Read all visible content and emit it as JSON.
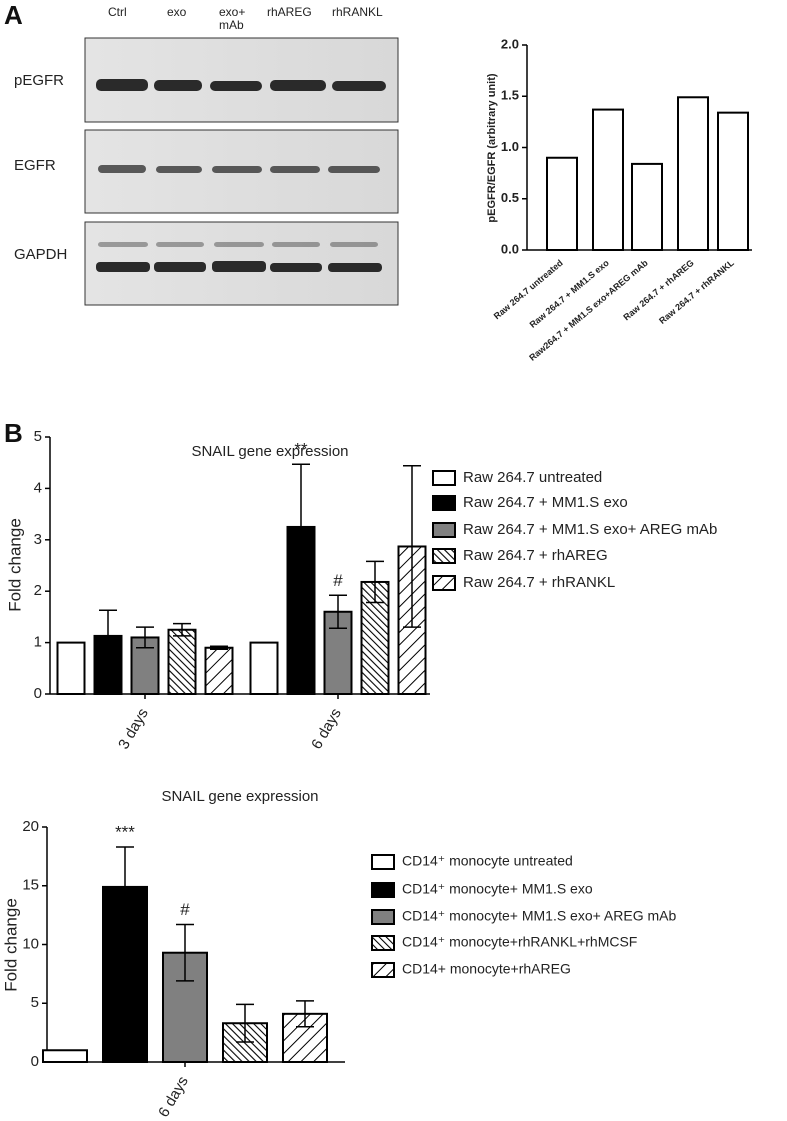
{
  "panel_labels": [
    "A",
    "B"
  ],
  "blot": {
    "lanes": [
      "Ctrl",
      "exo",
      "exo+ mAb",
      "rhAREG",
      "rhRANKL"
    ],
    "rows": [
      "pEGFR",
      "EGFR",
      "GAPDH"
    ]
  },
  "chart_data": [
    {
      "type": "bar",
      "ylabel": "pEGFR/EGFR (arbitrary unit)",
      "categories": [
        "Raw 264.7 untreated",
        "Raw 264.7 + MM1.S exo",
        "Raw264.7 + MM1.S exo+AREG mAb",
        "Raw 264.7 + rhAREG",
        "Raw 264.7 + rhRANKL"
      ],
      "values": [
        0.9,
        1.37,
        0.84,
        1.49,
        1.34
      ],
      "color": "#ffffff",
      "ylim": [
        0,
        2
      ],
      "yticks": [
        {
          "value": 0,
          "label": "0.0"
        },
        {
          "value": 0.5,
          "label": "0.5"
        },
        {
          "value": 1,
          "label": "1.0"
        },
        {
          "value": 1.5,
          "label": "1.5"
        },
        {
          "value": 2,
          "label": "2.0"
        }
      ]
    },
    {
      "type": "bar",
      "title": "SNAIL gene expression",
      "ylabel": "Fold change",
      "categories": [
        "3 days",
        "6 days"
      ],
      "series": [
        {
          "name": "Raw 264.7 untreated",
          "color": "#ffffff",
          "pattern": "none",
          "values": [
            1,
            1
          ],
          "errors": [
            0,
            0
          ],
          "marks": [
            null,
            null
          ]
        },
        {
          "name": "Raw 264.7 + MM1.S exo",
          "color": "#000000",
          "pattern": "none",
          "values": [
            1.13,
            3.25
          ],
          "errors": [
            0.5,
            1.22
          ],
          "marks": [
            null,
            "**"
          ]
        },
        {
          "name": "Raw 264.7 + MM1.S exo+ AREG mAb",
          "color": "#808080",
          "pattern": "none",
          "values": [
            1.1,
            1.6
          ],
          "errors": [
            0.2,
            0.32
          ],
          "marks": [
            null,
            "#"
          ]
        },
        {
          "name": "Raw 264.7 + rhAREG",
          "color": "#000000",
          "pattern": "backslash",
          "values": [
            1.25,
            2.18
          ],
          "errors": [
            0.12,
            0.4
          ],
          "marks": [
            null,
            null
          ]
        },
        {
          "name": "Raw 264.7 + rhRANKL",
          "color": "#000000",
          "pattern": "slash",
          "values": [
            0.9,
            2.87
          ],
          "errors": [
            0.03,
            1.57
          ],
          "marks": [
            null,
            null
          ]
        }
      ],
      "ylim": [
        0,
        5
      ],
      "yticks": [
        0,
        1,
        2,
        3,
        4,
        5
      ]
    },
    {
      "type": "bar",
      "title": "SNAIL gene expression",
      "ylabel": "Fold change",
      "categories": [
        "6 days"
      ],
      "series": [
        {
          "name": "CD14⁺ monocyte untreated",
          "color": "#ffffff",
          "pattern": "none",
          "values": [
            1
          ],
          "errors": [
            0
          ],
          "marks": [
            null
          ]
        },
        {
          "name": "CD14⁺ monocyte+ MM1.S exo",
          "color": "#000000",
          "pattern": "none",
          "values": [
            14.9
          ],
          "errors": [
            3.4
          ],
          "marks": [
            "***"
          ]
        },
        {
          "name": "CD14⁺ monocyte+ MM1.S exo+ AREG mAb",
          "color": "#808080",
          "pattern": "none",
          "values": [
            9.3
          ],
          "errors": [
            2.4
          ],
          "marks": [
            "#"
          ]
        },
        {
          "name": "CD14⁺ monocyte+rhRANKL+rhMCSF",
          "color": "#000000",
          "pattern": "backslash",
          "values": [
            3.3
          ],
          "errors": [
            1.6
          ],
          "marks": [
            null
          ]
        },
        {
          "name": "CD14+ monocyte+rhAREG",
          "color": "#000000",
          "pattern": "slash",
          "values": [
            4.1
          ],
          "errors": [
            1.1
          ],
          "marks": [
            null
          ]
        }
      ],
      "ylim": [
        0,
        20
      ],
      "yticks": [
        0,
        5,
        10,
        15,
        20
      ]
    }
  ]
}
